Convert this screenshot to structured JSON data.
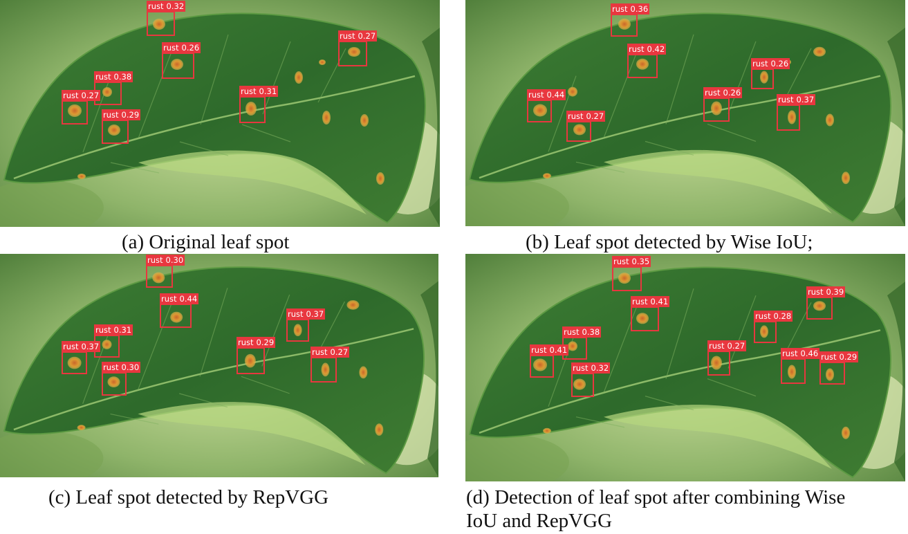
{
  "panels": [
    {
      "caption": "(a) Original leaf spot",
      "detections": [
        {
          "label": "rust",
          "score": "0.32"
        },
        {
          "label": "rust",
          "score": "0.27"
        },
        {
          "label": "rust",
          "score": "0.26"
        },
        {
          "label": "rust",
          "score": "0.38"
        },
        {
          "label": "rust",
          "score": "0.31"
        },
        {
          "label": "rust",
          "score": "0.27"
        },
        {
          "label": "rust",
          "score": "0.29"
        }
      ]
    },
    {
      "caption": "(b) Leaf spot detected by Wise IoU;",
      "detections": [
        {
          "label": "rust",
          "score": "0.36"
        },
        {
          "label": "rust",
          "score": "0.42"
        },
        {
          "label": "rust",
          "score": "0.26"
        },
        {
          "label": "rust",
          "score": "0.44"
        },
        {
          "label": "rust",
          "score": "0.26"
        },
        {
          "label": "rust",
          "score": "0.37"
        },
        {
          "label": "rust",
          "score": "0.27"
        }
      ]
    },
    {
      "caption": "(c) Leaf spot detected by RepVGG",
      "detections": [
        {
          "label": "rust",
          "score": "0.30"
        },
        {
          "label": "rust",
          "score": "0.44"
        },
        {
          "label": "rust",
          "score": "0.31"
        },
        {
          "label": "rust",
          "score": "0.37"
        },
        {
          "label": "rust",
          "score": "0.37"
        },
        {
          "label": "rust",
          "score": "0.29"
        },
        {
          "label": "rust",
          "score": "0.27"
        },
        {
          "label": "rust",
          "score": "0.30"
        }
      ]
    },
    {
      "caption": "(d) Detection of leaf spot after combining Wise\nIoU and RepVGG",
      "caption_lines": [
        "(d) Detection of leaf spot after combining Wise",
        "IoU and RepVGG"
      ],
      "detections": [
        {
          "label": "rust",
          "score": "0.35"
        },
        {
          "label": "rust",
          "score": "0.41"
        },
        {
          "label": "rust",
          "score": "0.39"
        },
        {
          "label": "rust",
          "score": "0.28"
        },
        {
          "label": "rust",
          "score": "0.38"
        },
        {
          "label": "rust",
          "score": "0.41"
        },
        {
          "label": "rust",
          "score": "0.27"
        },
        {
          "label": "rust",
          "score": "0.46"
        },
        {
          "label": "rust",
          "score": "0.29"
        },
        {
          "label": "rust",
          "score": "0.32"
        }
      ]
    }
  ],
  "colors": {
    "box": "#e8373f",
    "leaf": "#2f6f2a",
    "background": "#9fbf76",
    "spot": "#d98a2a"
  }
}
